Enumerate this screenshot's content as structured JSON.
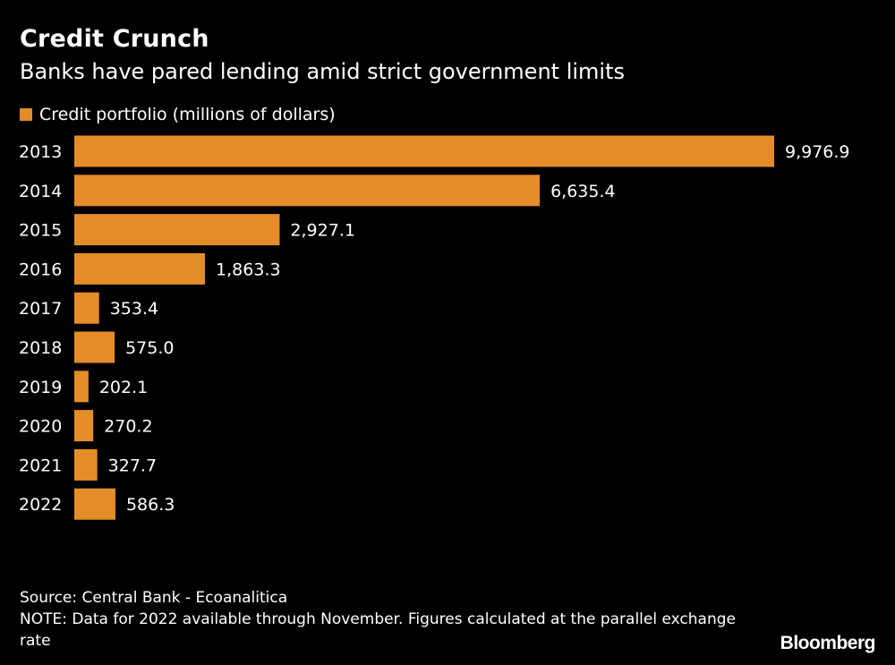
{
  "title": "Credit Crunch",
  "subtitle": "Banks have pared lending amid strict government limits",
  "chart_data": {
    "type": "bar",
    "orientation": "horizontal",
    "categories": [
      "2013",
      "2014",
      "2015",
      "2016",
      "2017",
      "2018",
      "2019",
      "2020",
      "2021",
      "2022"
    ],
    "series": [
      {
        "name": "Credit portfolio (millions of dollars)",
        "values": [
          9976.9,
          6635.4,
          2927.1,
          1863.3,
          353.4,
          575.0,
          202.1,
          270.2,
          327.7,
          586.3
        ],
        "labels": [
          "9,976.9",
          "6,635.4",
          "2,927.1",
          "1,863.3",
          "353.4",
          "575.0",
          "202.1",
          "270.2",
          "327.7",
          "586.3"
        ],
        "color": "#e48d28"
      }
    ],
    "xlim": [
      0,
      9976.9
    ],
    "grid": false,
    "legend": "top-left"
  },
  "footer": {
    "source": "Source: Central Bank - Ecoanalitica",
    "note": "NOTE: Data for 2022 available through November. Figures calculated at the parallel exchange rate"
  },
  "brand": "Bloomberg",
  "colors": {
    "background": "#000000",
    "bar": "#e48d28",
    "text": "#ffffff"
  }
}
